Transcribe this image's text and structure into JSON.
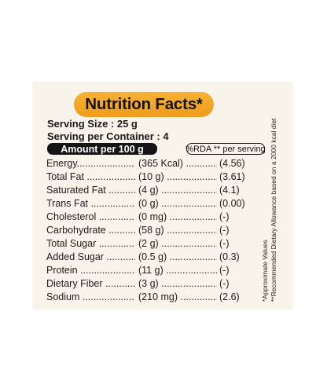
{
  "title": "Nutrition Facts*",
  "serving_size": "Serving Size : 25 g",
  "servings_per_container": "Serving per Container : 4",
  "amount_header": "Amount per 100 g",
  "rda_header": "%RDA ** per serving",
  "rows": [
    {
      "nutrient": "Energy.......................................",
      "amount": "(365 Kcal) ..............",
      "rda": "(4.56)"
    },
    {
      "nutrient": "Total Fat .......................................",
      "amount": "(10 g) ............................",
      "rda": "(3.61)"
    },
    {
      "nutrient": "Saturated Fat ................................",
      "amount": "(4 g) .............................",
      "rda": "(4.1)"
    },
    {
      "nutrient": "Trans Fat ........................................",
      "amount": "(0 g) ...........................",
      "rda": "(0.00)"
    },
    {
      "nutrient": "Cholesterol ......................................",
      "amount": "(0 mg) ..........................",
      "rda": "(-)"
    },
    {
      "nutrient": "Carbohydrate ..................................",
      "amount": "(58 g) ............................",
      "rda": "(-)"
    },
    {
      "nutrient": "Total Sugar .....................................",
      "amount": "(2 g) .............................",
      "rda": "(-)"
    },
    {
      "nutrient": "Added Sugar ....................................",
      "amount": "(0.5 g) ..........................",
      "rda": "(0.3)"
    },
    {
      "nutrient": "Protein ..........................................",
      "amount": "(11 g) ............................",
      "rda": "(-)"
    },
    {
      "nutrient": "Dietary Fiber .................................",
      "amount": "(3 g) .............................",
      "rda": "(-)"
    },
    {
      "nutrient": "Sodium ..........................................",
      "amount": "(210 mg) .......................",
      "rda": "(2.6)"
    }
  ],
  "footnotes": [
    "*Approximate Values",
    "**Recommended Dietary Allowance based on a 2000 kcal diet"
  ],
  "colors": {
    "label_background": "#f8f4eb",
    "title_pill": "#f4a82a",
    "text": "#1c1c1c"
  }
}
